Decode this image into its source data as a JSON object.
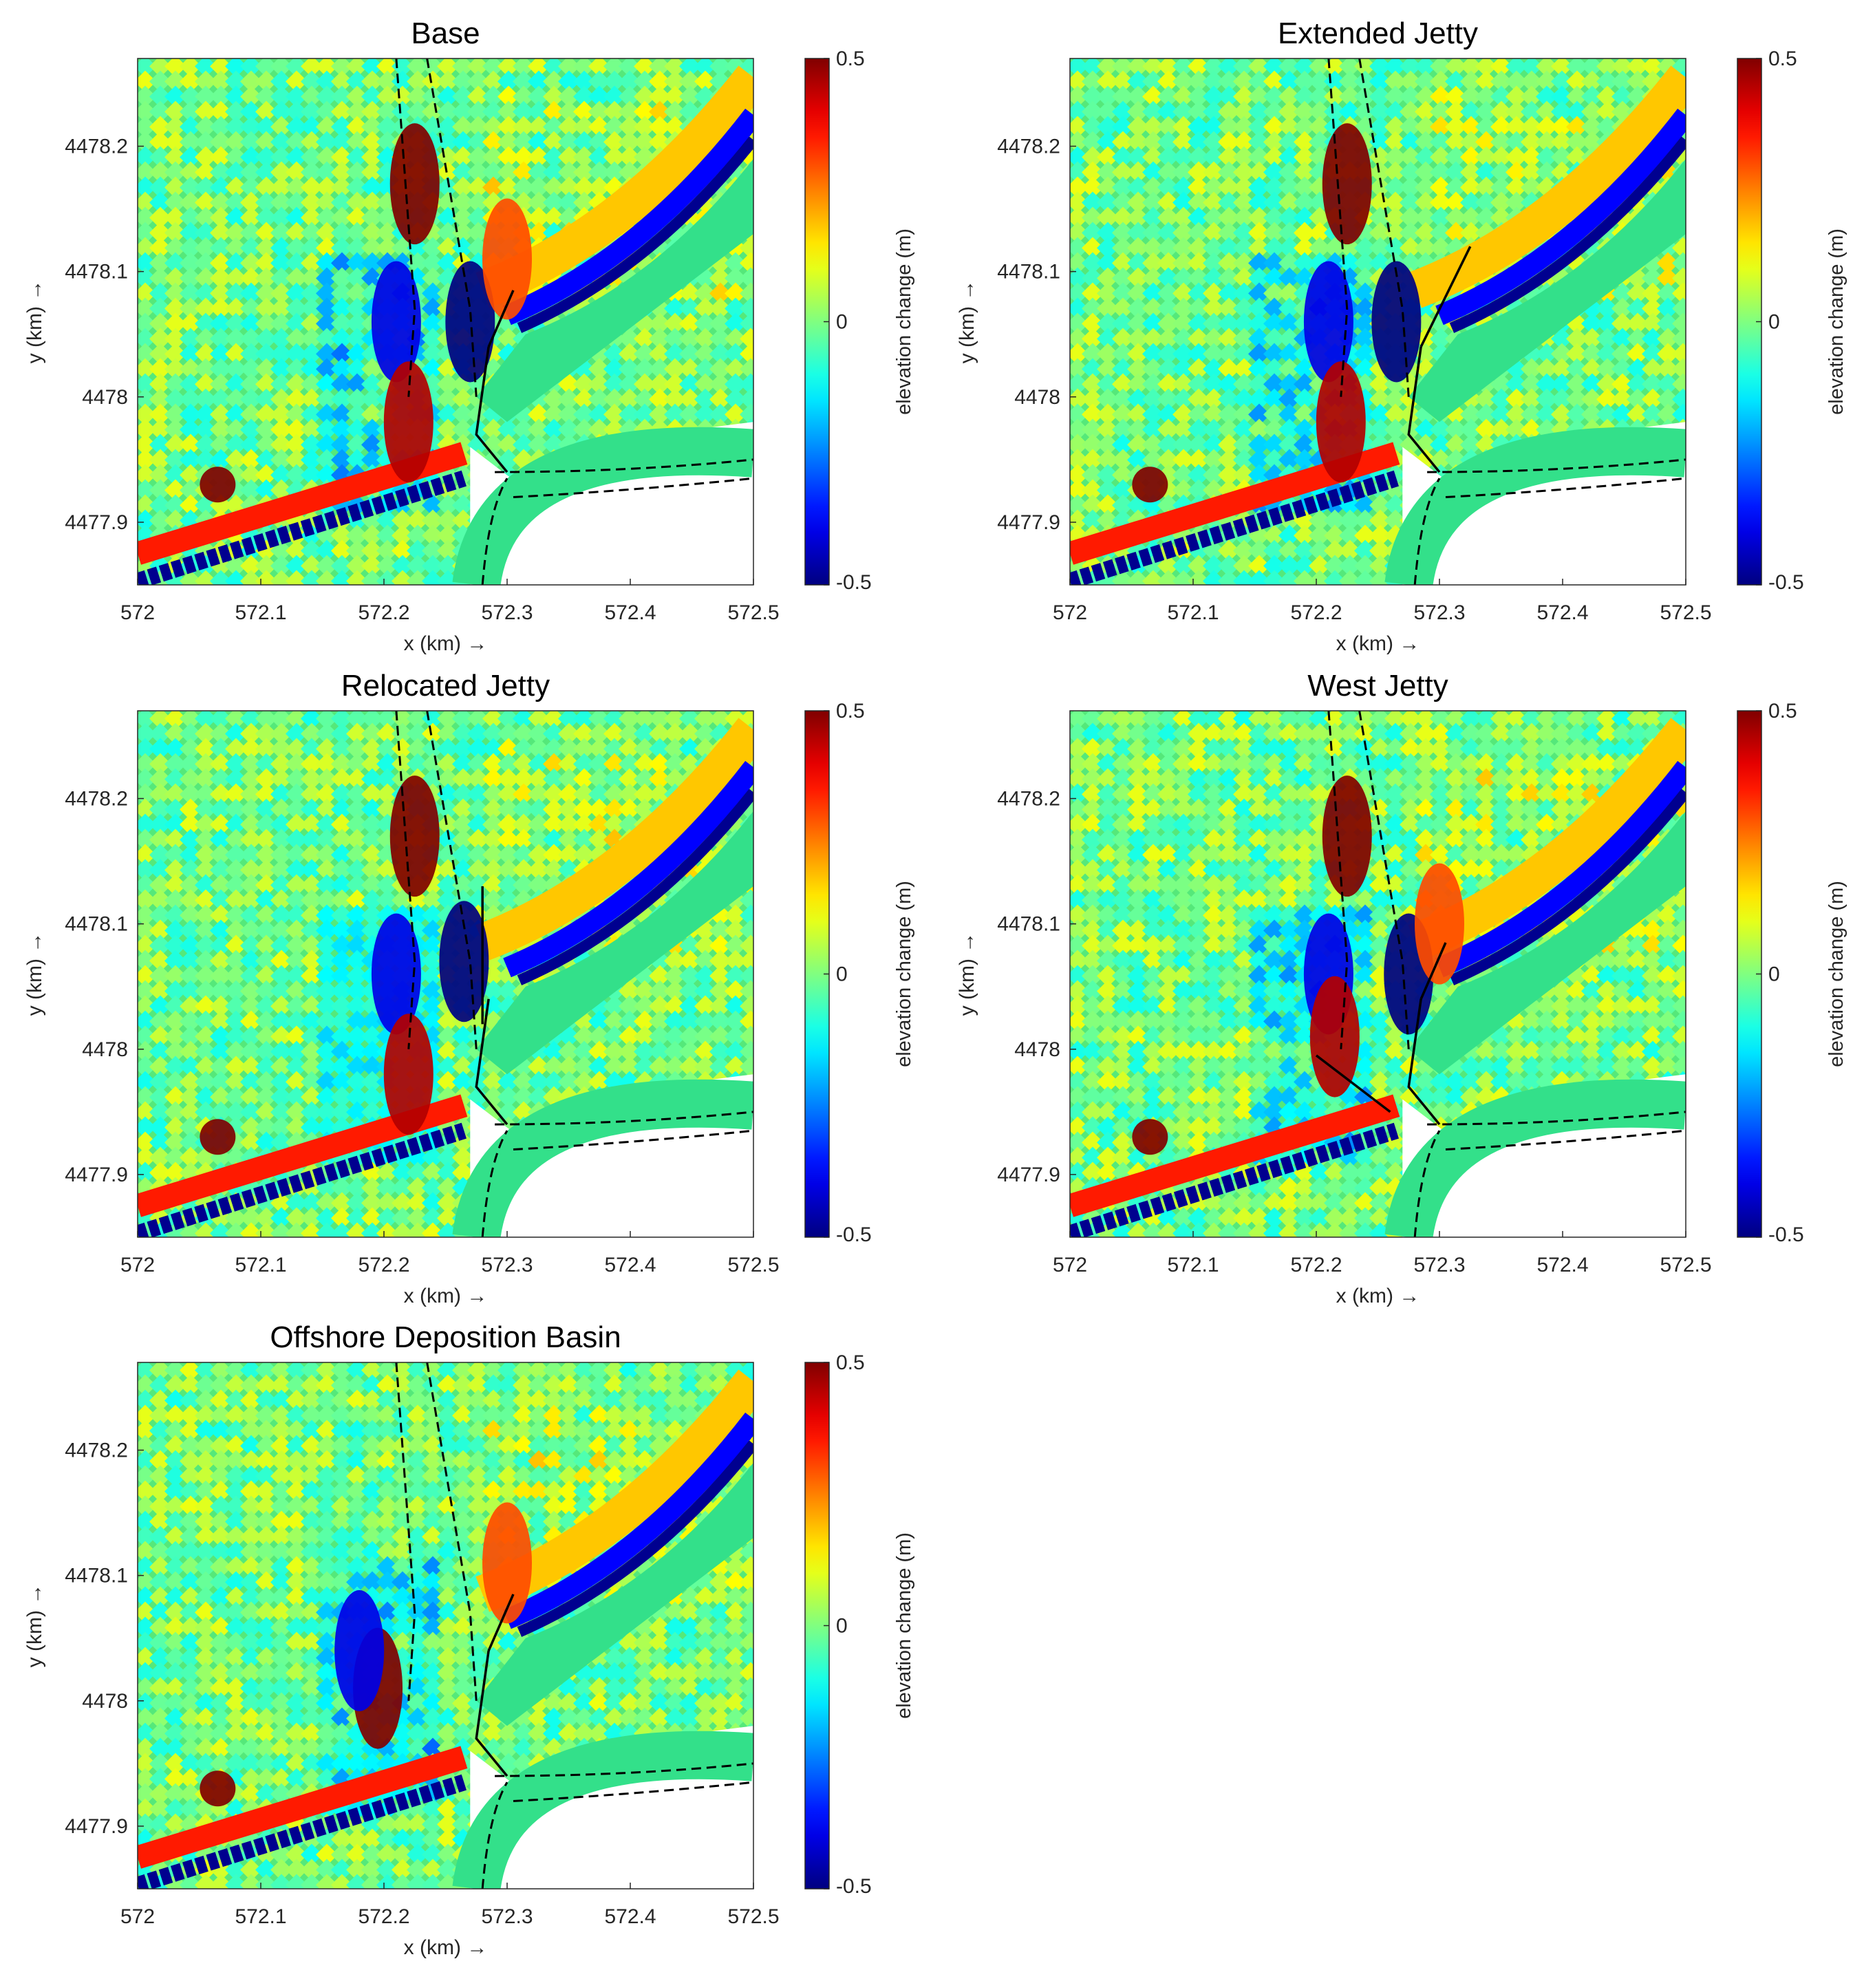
{
  "figure": {
    "colorbar_label": "elevation change (m)",
    "colorbar_ticks": [
      "0.5",
      "0",
      "-0.5"
    ],
    "colormap": "jet",
    "colors": {
      "deep_blue": "#00008f",
      "blue": "#0000ff",
      "cyan": "#00ffff",
      "green": "#2fe07a",
      "yellow": "#ffff00",
      "orange": "#ff8000",
      "red": "#ff0000",
      "dark_red": "#800000",
      "structure": "#000000",
      "land": "#ffffff"
    }
  },
  "chart_data": [
    {
      "type": "heatmap",
      "title": "Base",
      "xlabel": "x (km) →",
      "ylabel": "y (km) →",
      "xlim": [
        572,
        572.5
      ],
      "ylim": [
        4477.85,
        4478.27
      ],
      "x_ticks": [
        "572",
        "572.1",
        "572.2",
        "572.3",
        "572.4",
        "572.5"
      ],
      "y_ticks": [
        "4477.9",
        "4478",
        "4478.1",
        "4478.2"
      ],
      "clim": [
        -0.5,
        0.5
      ],
      "features": [
        {
          "kind": "deposition",
          "x": 572.225,
          "y": 4478.17,
          "value": 0.5
        },
        {
          "kind": "erosion",
          "x": 572.27,
          "y": 4478.06,
          "value": -0.5
        },
        {
          "kind": "erosion",
          "x": 572.21,
          "y": 4478.06,
          "value": -0.4
        },
        {
          "kind": "deposition",
          "x": 572.22,
          "y": 4477.98,
          "value": 0.45
        },
        {
          "kind": "deposition",
          "x": 572.3,
          "y": 4478.11,
          "value": 0.3
        },
        {
          "kind": "deposition",
          "x": 572.065,
          "y": 4477.93,
          "value": 0.5
        }
      ]
    },
    {
      "type": "heatmap",
      "title": "Extended Jetty",
      "xlabel": "x (km) →",
      "ylabel": "y (km) →",
      "xlim": [
        572,
        572.5
      ],
      "ylim": [
        4477.85,
        4478.27
      ],
      "x_ticks": [
        "572",
        "572.1",
        "572.2",
        "572.3",
        "572.4",
        "572.5"
      ],
      "y_ticks": [
        "4477.9",
        "4478",
        "4478.1",
        "4478.2"
      ],
      "clim": [
        -0.5,
        0.5
      ],
      "features": [
        {
          "kind": "deposition",
          "x": 572.225,
          "y": 4478.17,
          "value": 0.5
        },
        {
          "kind": "erosion",
          "x": 572.265,
          "y": 4478.06,
          "value": -0.5
        },
        {
          "kind": "erosion",
          "x": 572.21,
          "y": 4478.06,
          "value": -0.4
        },
        {
          "kind": "deposition",
          "x": 572.22,
          "y": 4477.98,
          "value": 0.45
        },
        {
          "kind": "deposition",
          "x": 572.065,
          "y": 4477.93,
          "value": 0.5
        }
      ]
    },
    {
      "type": "heatmap",
      "title": "Relocated Jetty",
      "xlabel": "x (km) →",
      "ylabel": "y (km) →",
      "xlim": [
        572,
        572.5
      ],
      "ylim": [
        4477.85,
        4478.27
      ],
      "x_ticks": [
        "572",
        "572.1",
        "572.2",
        "572.3",
        "572.4",
        "572.5"
      ],
      "y_ticks": [
        "4477.9",
        "4478",
        "4478.1",
        "4478.2"
      ],
      "clim": [
        -0.5,
        0.5
      ],
      "features": [
        {
          "kind": "deposition",
          "x": 572.225,
          "y": 4478.17,
          "value": 0.5
        },
        {
          "kind": "erosion",
          "x": 572.265,
          "y": 4478.07,
          "value": -0.5
        },
        {
          "kind": "erosion",
          "x": 572.21,
          "y": 4478.06,
          "value": -0.4
        },
        {
          "kind": "deposition",
          "x": 572.22,
          "y": 4477.98,
          "value": 0.45
        },
        {
          "kind": "deposition",
          "x": 572.065,
          "y": 4477.93,
          "value": 0.5
        }
      ]
    },
    {
      "type": "heatmap",
      "title": "West Jetty",
      "xlabel": "x (km) →",
      "ylabel": "y (km) →",
      "xlim": [
        572,
        572.5
      ],
      "ylim": [
        4477.85,
        4478.27
      ],
      "x_ticks": [
        "572",
        "572.1",
        "572.2",
        "572.3",
        "572.4",
        "572.5"
      ],
      "y_ticks": [
        "4477.9",
        "4478",
        "4478.1",
        "4478.2"
      ],
      "clim": [
        -0.5,
        0.5
      ],
      "features": [
        {
          "kind": "deposition",
          "x": 572.225,
          "y": 4478.17,
          "value": 0.5
        },
        {
          "kind": "erosion",
          "x": 572.275,
          "y": 4478.06,
          "value": -0.5
        },
        {
          "kind": "erosion",
          "x": 572.21,
          "y": 4478.06,
          "value": -0.4
        },
        {
          "kind": "deposition",
          "x": 572.215,
          "y": 4478.01,
          "value": 0.45
        },
        {
          "kind": "deposition",
          "x": 572.3,
          "y": 4478.1,
          "value": 0.3
        },
        {
          "kind": "deposition",
          "x": 572.065,
          "y": 4477.93,
          "value": 0.5
        }
      ]
    },
    {
      "type": "heatmap",
      "title": "Offshore Deposition Basin",
      "xlabel": "x (km) →",
      "ylabel": "y (km) →",
      "xlim": [
        572,
        572.5
      ],
      "ylim": [
        4477.85,
        4478.27
      ],
      "x_ticks": [
        "572",
        "572.1",
        "572.2",
        "572.3",
        "572.4",
        "572.5"
      ],
      "y_ticks": [
        "4477.9",
        "4478",
        "4478.1",
        "4478.2"
      ],
      "clim": [
        -0.5,
        0.5
      ],
      "features": [
        {
          "kind": "deposition",
          "x": 572.195,
          "y": 4478.01,
          "value": 0.5
        },
        {
          "kind": "erosion",
          "x": 572.18,
          "y": 4478.04,
          "value": -0.4
        },
        {
          "kind": "deposition",
          "x": 572.3,
          "y": 4478.11,
          "value": 0.3
        },
        {
          "kind": "deposition",
          "x": 572.065,
          "y": 4477.93,
          "value": 0.5
        }
      ]
    }
  ]
}
